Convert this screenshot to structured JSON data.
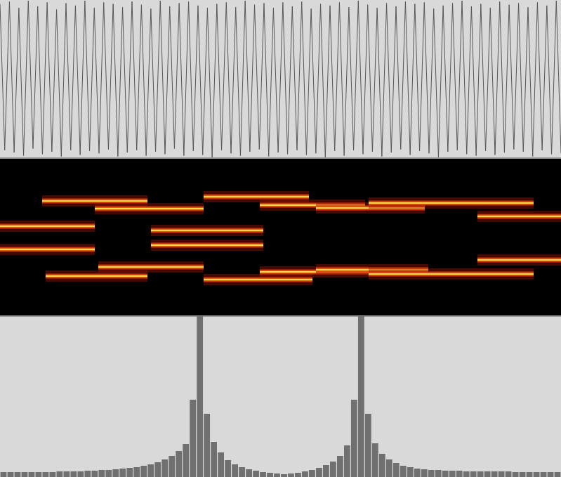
{
  "chart_data": [
    {
      "type": "line",
      "color": "#555555",
      "tick_labels": false,
      "grid": false,
      "xlim": [
        0,
        119
      ],
      "ylim": [
        -1,
        1
      ],
      "x": [
        0,
        1,
        2,
        3,
        4,
        5,
        6,
        7,
        8,
        9,
        10,
        11,
        12,
        13,
        14,
        15,
        16,
        17,
        18,
        19,
        20,
        21,
        22,
        23,
        24,
        25,
        26,
        27,
        28,
        29,
        30,
        31,
        32,
        33,
        34,
        35,
        36,
        37,
        38,
        39,
        40,
        41,
        42,
        43,
        44,
        45,
        46,
        47,
        48,
        49,
        50,
        51,
        52,
        53,
        54,
        55,
        56,
        57,
        58,
        59,
        60,
        61,
        62,
        63,
        64,
        65,
        66,
        67,
        68,
        69,
        70,
        71,
        72,
        73,
        74,
        75,
        76,
        77,
        78,
        79,
        80,
        81,
        82,
        83,
        84,
        85,
        86,
        87,
        88,
        89,
        90,
        91,
        92,
        93,
        94,
        95,
        96,
        97,
        98,
        99,
        100,
        101,
        102,
        103,
        104,
        105,
        106,
        107,
        108,
        109,
        110,
        111,
        112,
        113,
        114,
        115,
        116,
        117,
        118,
        119
      ],
      "values": [
        0.95,
        -0.9,
        0.98,
        -0.93,
        0.9,
        -0.97,
        0.99,
        -0.88,
        0.92,
        -0.95,
        0.97,
        -0.92,
        0.88,
        -0.98,
        0.96,
        -0.9,
        0.93,
        -0.96,
        0.99,
        -0.91,
        0.9,
        -0.94,
        0.97,
        -0.89,
        0.95,
        -0.98,
        0.91,
        -0.93,
        0.98,
        -0.9,
        0.94,
        -0.97,
        0.89,
        -0.92,
        0.99,
        -0.95,
        0.92,
        -0.88,
        0.96,
        -0.97,
        0.98,
        -0.91,
        0.93,
        -0.96,
        0.9,
        -0.99,
        0.95,
        -0.9,
        0.97,
        -0.94,
        0.91,
        -0.97,
        0.99,
        -0.92,
        0.94,
        -0.89,
        0.96,
        -0.98,
        0.9,
        -0.93,
        0.97,
        -0.95,
        0.92,
        -0.9,
        0.98,
        -0.96,
        0.89,
        -0.94,
        0.95,
        -0.99,
        0.93,
        -0.91,
        0.97,
        -0.97,
        0.91,
        -0.9,
        0.99,
        -0.95,
        0.94,
        -0.92,
        0.9,
        -0.98,
        0.96,
        -0.93,
        0.92,
        -0.89,
        0.98,
        -0.96,
        0.95,
        -0.91,
        0.97,
        -0.94,
        0.89,
        -0.99,
        0.93,
        -0.92,
        0.96,
        -0.9,
        0.99,
        -0.95,
        0.92,
        -0.97,
        0.95,
        -0.91,
        0.9,
        -0.96,
        0.98,
        -0.93,
        0.94,
        -0.89,
        0.96,
        -0.92,
        0.91,
        -0.98,
        0.97,
        -0.9,
        0.93,
        -0.95,
        0.99,
        -0.94
      ]
    },
    {
      "type": "spectrogram",
      "color": "#ffd84a",
      "tick_labels": false,
      "grid": false,
      "xlim": [
        0,
        799
      ],
      "ylim": [
        0,
        225
      ],
      "tones": [
        {
          "t": [
            0,
            135
          ],
          "f": 128
        },
        {
          "t": [
            0,
            135
          ],
          "f": 95
        },
        {
          "t": [
            60,
            210
          ],
          "f": 164
        },
        {
          "t": [
            65,
            210
          ],
          "f": 57
        },
        {
          "t": [
            135,
            290
          ],
          "f": 153
        },
        {
          "t": [
            140,
            290
          ],
          "f": 70
        },
        {
          "t": [
            215,
            375
          ],
          "f": 122
        },
        {
          "t": [
            215,
            375
          ],
          "f": 101
        },
        {
          "t": [
            290,
            440
          ],
          "f": 170
        },
        {
          "t": [
            290,
            445
          ],
          "f": 52
        },
        {
          "t": [
            370,
            520
          ],
          "f": 158
        },
        {
          "t": [
            370,
            525
          ],
          "f": 63
        },
        {
          "t": [
            450,
            605
          ],
          "f": 154
        },
        {
          "t": [
            450,
            610
          ],
          "f": 66
        },
        {
          "t": [
            525,
            760
          ],
          "f": 161
        },
        {
          "t": [
            525,
            760
          ],
          "f": 60
        },
        {
          "t": [
            680,
            799
          ],
          "f": 142
        },
        {
          "t": [
            680,
            799
          ],
          "f": 80
        }
      ]
    },
    {
      "type": "bar",
      "color": "#707070",
      "tick_labels": false,
      "grid": false,
      "xlim": [
        -0.5,
        79.5
      ],
      "ylim": [
        0,
        229
      ],
      "x": [
        0,
        1,
        2,
        3,
        4,
        5,
        6,
        7,
        8,
        9,
        10,
        11,
        12,
        13,
        14,
        15,
        16,
        17,
        18,
        19,
        20,
        21,
        22,
        23,
        24,
        25,
        26,
        27,
        28,
        29,
        30,
        31,
        32,
        33,
        34,
        35,
        36,
        37,
        38,
        39,
        40,
        41,
        42,
        43,
        44,
        45,
        46,
        47,
        48,
        49,
        50,
        51,
        52,
        53,
        54,
        55,
        56,
        57,
        58,
        59,
        60,
        61,
        62,
        63,
        64,
        65,
        66,
        67,
        68,
        69,
        70,
        71,
        72,
        73,
        74,
        75,
        76,
        77,
        78,
        79
      ],
      "values": [
        7,
        7,
        7,
        7,
        7,
        7,
        7,
        7,
        8,
        8,
        8,
        8,
        9,
        9,
        10,
        10,
        11,
        12,
        13,
        14,
        16,
        18,
        21,
        25,
        30,
        37,
        47,
        110,
        229,
        90,
        50,
        35,
        24,
        18,
        14,
        11,
        9,
        7,
        6,
        5,
        4,
        5,
        6,
        8,
        10,
        13,
        17,
        22,
        30,
        45,
        110,
        229,
        90,
        48,
        33,
        25,
        20,
        16,
        14,
        12,
        11,
        10,
        10,
        9,
        9,
        9,
        8,
        8,
        8,
        8,
        8,
        8,
        8,
        7,
        7,
        7,
        7,
        7,
        7,
        7
      ]
    }
  ]
}
